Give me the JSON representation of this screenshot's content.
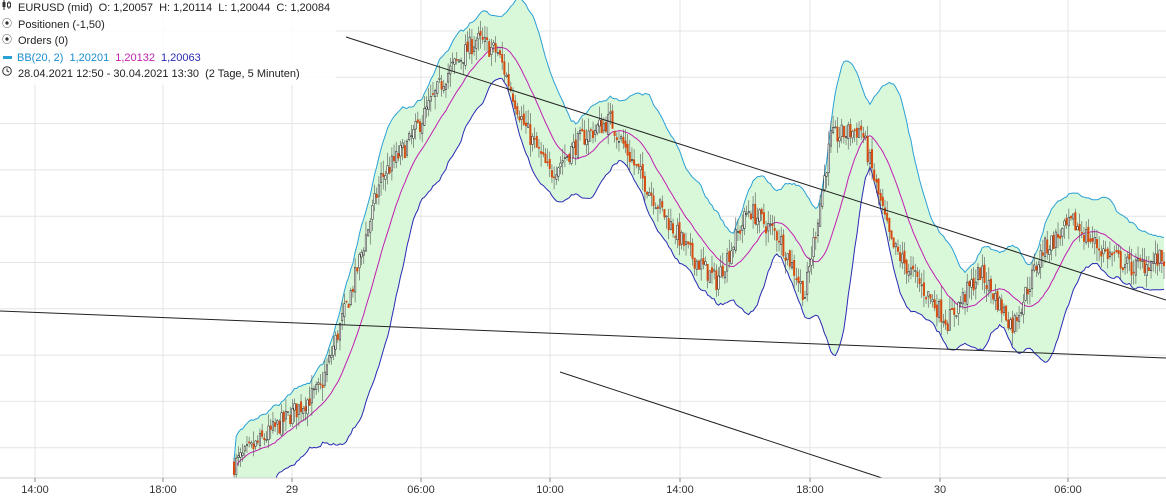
{
  "legend": {
    "instrument": "EURUSD (mid)",
    "ohlc": "O: 1,20057  H: 1,20114  L: 1,20044  C: 1,20084",
    "positions": "Positionen (-1,50)",
    "orders": "Orders (0)",
    "bb_label": "BB(20, 2)",
    "bb_upper": "1,20201",
    "bb_middle": "1,20132",
    "bb_lower": "1,20063",
    "range": "28.04.2021 12:50 - 30.04.2021 13:30",
    "span": "(2 Tage, 5 Minuten)"
  },
  "icons": {
    "candles": "candlestick-icon",
    "positions": "target-icon",
    "orders": "target-icon",
    "bb": "line-swatch-icon",
    "range": "clock-icon"
  },
  "colors": {
    "band_fill": "#d9f8d9",
    "upper_band": "#2aa0d6",
    "middle_band": "#c21fb0",
    "lower_band": "#2a2ab5",
    "bull_candle": "#1a1a1a",
    "bear_candle": "#d44b10",
    "trend_line": "#222222",
    "grid": "#e4e4e4"
  },
  "chart_data": {
    "type": "candlestick",
    "instrument": "EURUSD (mid)",
    "interval": "5 min",
    "period": "28.04.2021 12:50 - 30.04.2021 13:30",
    "x_tick_labels": [
      "14:00",
      "18:00",
      "29",
      "06:00",
      "10:00",
      "14:00",
      "18:00",
      "30",
      "06:00"
    ],
    "indicator": "BB(20, 2)",
    "last_values": {
      "upper": 1.20201,
      "middle": 1.20132,
      "lower": 1.20063
    },
    "last_candle": {
      "open": 1.20057,
      "high": 1.20114,
      "low": 1.20044,
      "close": 1.20084
    },
    "price_range": [
      1.199,
      1.2095
    ],
    "close_path": [
      [
        0,
        1.1993
      ],
      [
        40,
        1.201
      ],
      [
        55,
        1.2033
      ],
      [
        68,
        1.2057
      ],
      [
        81,
        1.2065
      ],
      [
        98,
        1.208
      ],
      [
        112,
        1.2088
      ],
      [
        122,
        1.2085
      ],
      [
        134,
        1.2069
      ],
      [
        146,
        1.2058
      ],
      [
        161,
        1.2066
      ],
      [
        174,
        1.207
      ],
      [
        185,
        1.206
      ],
      [
        200,
        1.2048
      ],
      [
        211,
        1.204
      ],
      [
        223,
        1.2034
      ],
      [
        238,
        1.205
      ],
      [
        252,
        1.2044
      ],
      [
        264,
        1.2031
      ],
      [
        276,
        1.2066
      ],
      [
        290,
        1.2068
      ],
      [
        304,
        1.2042
      ],
      [
        316,
        1.2034
      ],
      [
        330,
        1.2025
      ],
      [
        345,
        1.2036
      ],
      [
        360,
        1.2024
      ],
      [
        374,
        1.2041
      ],
      [
        388,
        1.2047
      ],
      [
        401,
        1.2041
      ],
      [
        415,
        1.2037
      ],
      [
        430,
        1.2039
      ]
    ],
    "grid": true
  }
}
